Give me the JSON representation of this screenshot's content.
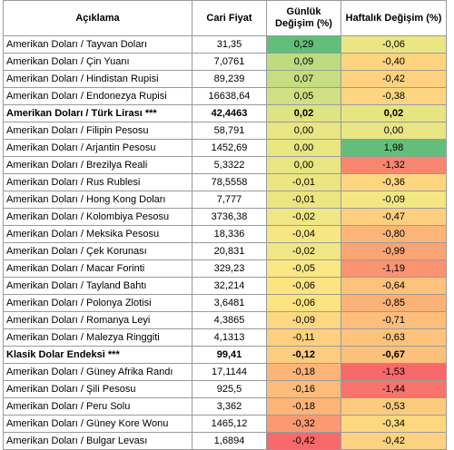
{
  "headers": {
    "description": "Açıklama",
    "price": "Cari Fiyat",
    "daily": "Günlük Değişim (%)",
    "weekly": "Haftalık Değişim (%)"
  },
  "rows": [
    {
      "desc": "Amerikan Doları / Tayvan Doları",
      "price": "31,35",
      "daily": "0,29",
      "weekly": "-0,06",
      "daily_color": "#63be7b",
      "weekly_color": "#ebe683",
      "bold": false
    },
    {
      "desc": "Amerikan Doları / Çin Yuanı",
      "price": "7,0761",
      "daily": "0,09",
      "weekly": "-0,40",
      "daily_color": "#bedb80",
      "weekly_color": "#fed480",
      "bold": false
    },
    {
      "desc": "Amerikan Doları / Hindistan Rupisi",
      "price": "89,239",
      "daily": "0,07",
      "weekly": "-0,42",
      "daily_color": "#c7dd81",
      "weekly_color": "#fed280",
      "bold": false
    },
    {
      "desc": "Amerikan Doları / Endonezya Rupisi",
      "price": "16638,64",
      "daily": "0,05",
      "weekly": "-0,38",
      "daily_color": "#d0e082",
      "weekly_color": "#fed580",
      "bold": false
    },
    {
      "desc": "Amerikan Doları / Türk Lirası ***",
      "price": "42,4463",
      "daily": "0,02",
      "weekly": "0,02",
      "daily_color": "#dee383",
      "weekly_color": "#e7e582",
      "bold": true
    },
    {
      "desc": "Amerikan Doları / Filipin Pesosu",
      "price": "58,791",
      "daily": "0,00",
      "weekly": "0,00",
      "daily_color": "#e8e583",
      "weekly_color": "#e8e583",
      "bold": false
    },
    {
      "desc": "Amerikan Doları / Arjantin Pesosu",
      "price": "1452,69",
      "daily": "0,00",
      "weekly": "1,98",
      "daily_color": "#e8e583",
      "weekly_color": "#63be7b",
      "bold": false
    },
    {
      "desc": "Amerikan Doları / Brezilya Reali",
      "price": "5,3322",
      "daily": "0,00",
      "weekly": "-1,32",
      "daily_color": "#e8e583",
      "weekly_color": "#f8866e",
      "bold": false
    },
    {
      "desc": "Amerikan Doları / Rus Rublesi",
      "price": "78,5558",
      "daily": "-0,01",
      "weekly": "-0,36",
      "daily_color": "#ece582",
      "weekly_color": "#fed680",
      "bold": false
    },
    {
      "desc": "Amerikan Doları / Hong Kong Doları",
      "price": "7,777",
      "daily": "-0,01",
      "weekly": "-0,09",
      "daily_color": "#ece582",
      "weekly_color": "#f2e783",
      "bold": false
    },
    {
      "desc": "Amerikan Doları / Kolombiya Pesosu",
      "price": "3736,38",
      "daily": "-0,02",
      "weekly": "-0,47",
      "daily_color": "#f0e683",
      "weekly_color": "#fecf7f",
      "bold": false
    },
    {
      "desc": "Amerikan Doları / Meksika Pesosu",
      "price": "18,336",
      "daily": "-0,04",
      "weekly": "-0,80",
      "daily_color": "#f7e784",
      "weekly_color": "#fcb579",
      "bold": false
    },
    {
      "desc": "Amerikan Doları / Çek Korunası",
      "price": "20,831",
      "daily": "-0,02",
      "weekly": "-0,99",
      "daily_color": "#f0e683",
      "weekly_color": "#faa575",
      "bold": false
    },
    {
      "desc": "Amerikan Doları / Macar Forinti",
      "price": "329,23",
      "daily": "-0,05",
      "weekly": "-1,19",
      "daily_color": "#fbe783",
      "weekly_color": "#f99371",
      "bold": false
    },
    {
      "desc": "Amerikan Doları / Tayland Bahtı",
      "price": "32,214",
      "daily": "-0,06",
      "weekly": "-0,64",
      "daily_color": "#fee382",
      "weekly_color": "#fdc27c",
      "bold": false
    },
    {
      "desc": "Amerikan Doları / Polonya Zlotisi",
      "price": "3,6481",
      "daily": "-0,06",
      "weekly": "-0,85",
      "daily_color": "#fee382",
      "weekly_color": "#fcb178",
      "bold": false
    },
    {
      "desc": "Amerikan Doları / Romanya Leyi",
      "price": "4,3865",
      "daily": "-0,09",
      "weekly": "-0,71",
      "daily_color": "#fed880",
      "weekly_color": "#fdbd7b",
      "bold": false
    },
    {
      "desc": "Amerikan Doları / Malezya Ringgiti",
      "price": "4,1313",
      "daily": "-0,11",
      "weekly": "-0,63",
      "daily_color": "#fed07f",
      "weekly_color": "#fdc37c",
      "bold": false
    },
    {
      "desc": "Klasik Dolar Endeksi ***",
      "price": "99,41",
      "daily": "-0,12",
      "weekly": "-0,67",
      "daily_color": "#fecc7e",
      "weekly_color": "#fdc07b",
      "bold": true
    },
    {
      "desc": "Amerikan Doları / Güney Afrika Randı",
      "price": "17,1144",
      "daily": "-0,18",
      "weekly": "-1,53",
      "daily_color": "#fcb479",
      "weekly_color": "#f8696b",
      "bold": false
    },
    {
      "desc": "Amerikan Doları / Şili Pesosu",
      "price": "925,5",
      "daily": "-0,16",
      "weekly": "-1,44",
      "daily_color": "#fdbc7b",
      "weekly_color": "#f8746d",
      "bold": false
    },
    {
      "desc": "Amerikan Doları / Peru Solu",
      "price": "3,362",
      "daily": "-0,18",
      "weekly": "-0,53",
      "daily_color": "#fcb479",
      "weekly_color": "#fdcb7e",
      "bold": false
    },
    {
      "desc": "Amerikan Doları / Güney Kore Wonu",
      "price": "1465,12",
      "daily": "-0,32",
      "weekly": "-0,34",
      "daily_color": "#fa9a73",
      "weekly_color": "#fed880",
      "bold": false
    },
    {
      "desc": "Amerikan Doları / Bulgar Levası",
      "price": "1,6894",
      "daily": "-0,42",
      "weekly": "-0,42",
      "daily_color": "#f8696b",
      "weekly_color": "#fed280",
      "bold": false
    }
  ]
}
